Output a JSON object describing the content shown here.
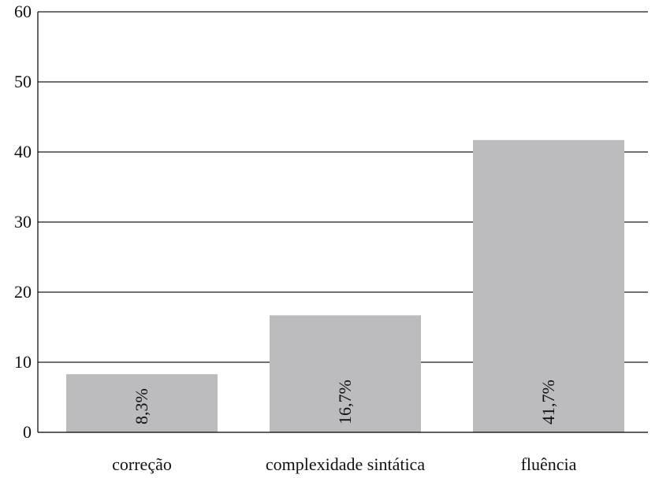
{
  "chart_data": {
    "type": "bar",
    "categories": [
      "correção",
      "complexidade sintática",
      "fluência"
    ],
    "values": [
      8.3,
      16.7,
      41.7
    ],
    "data_labels": [
      "8,3%",
      "16,7%",
      "41,7%"
    ],
    "y_ticks": [
      "0",
      "10",
      "20",
      "30",
      "40",
      "50",
      "60"
    ],
    "ylim": [
      0,
      60
    ],
    "title": "",
    "xlabel": "",
    "ylabel": "",
    "grid": true,
    "legend": "none",
    "bar_color": "#bcbcbf",
    "grid_color": "#1a1a1a"
  }
}
